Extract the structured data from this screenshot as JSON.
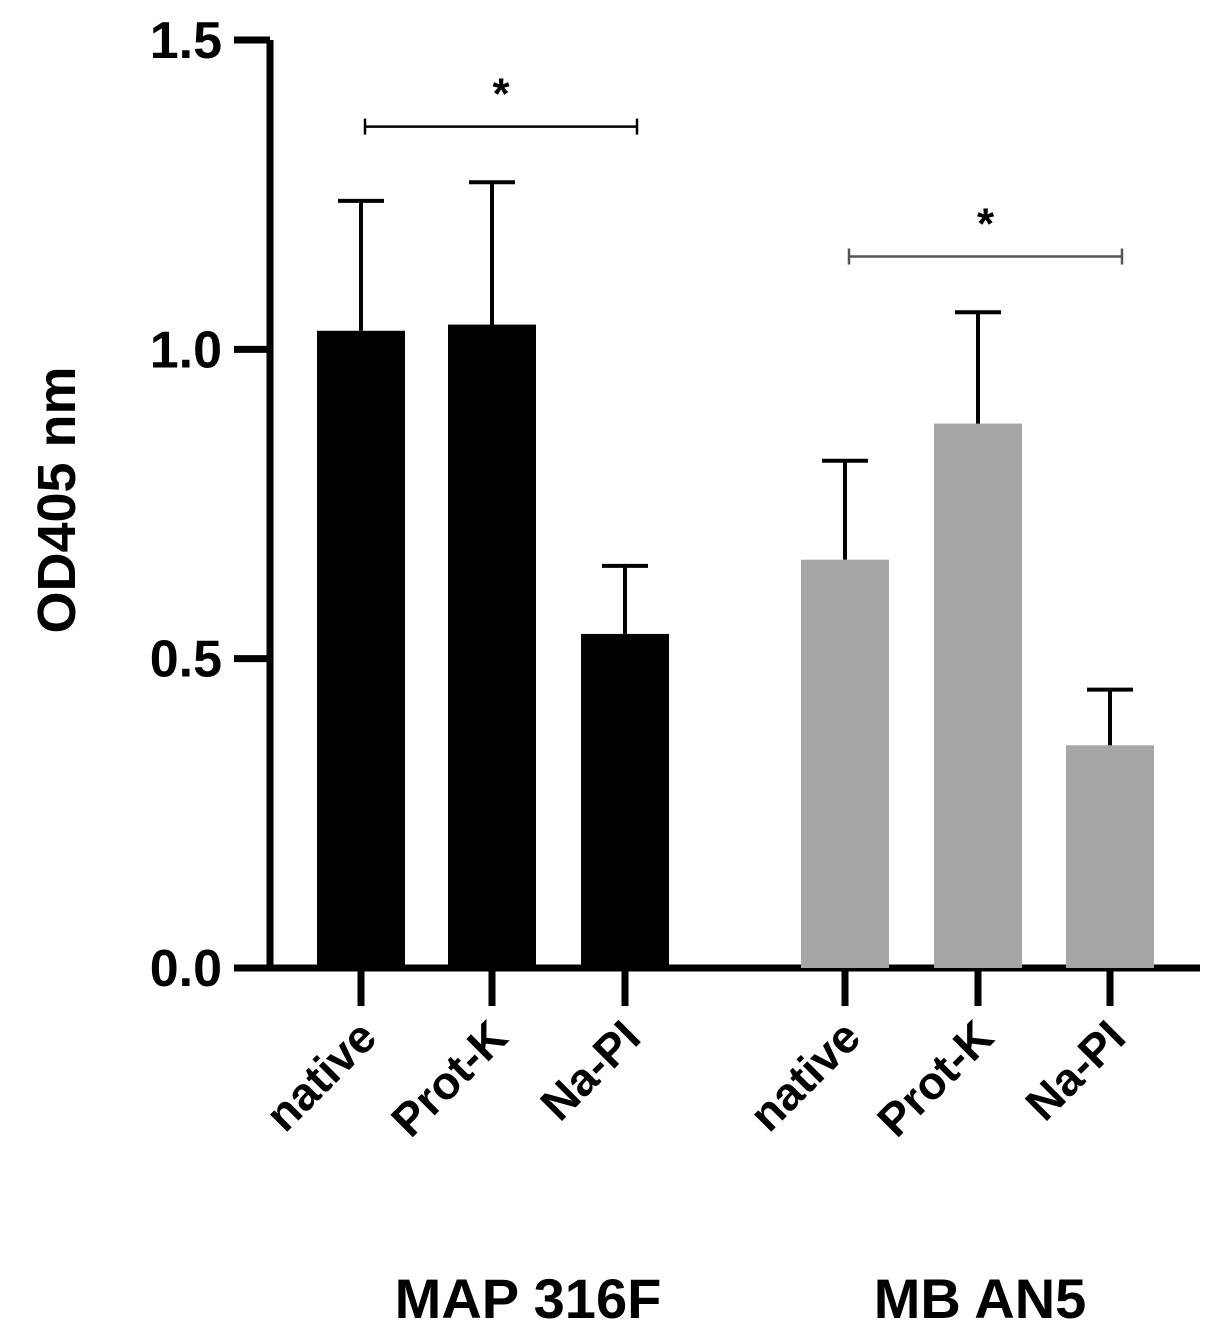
{
  "chart_data": {
    "type": "bar",
    "ylabel": "OD405 nm",
    "ylim": [
      0,
      1.5
    ],
    "yticks": [
      "0.0",
      "0.5",
      "1.0",
      "1.5"
    ],
    "grid": false,
    "error_bars": "upper",
    "groups": [
      {
        "name": "MAP 316F",
        "color": "#000000",
        "categories": [
          "native",
          "Prot-K",
          "Na-PI"
        ],
        "values": [
          1.03,
          1.04,
          0.54
        ],
        "errors": [
          0.21,
          0.23,
          0.11
        ]
      },
      {
        "name": "MB AN5",
        "color": "#a6a6a8",
        "categories": [
          "native",
          "Prot-K",
          "Na-PI"
        ],
        "values": [
          0.66,
          0.88,
          0.36
        ],
        "errors": [
          0.16,
          0.18,
          0.09
        ]
      }
    ],
    "annotations": [
      {
        "text": "*",
        "group": 0,
        "from": "native",
        "to": "Na-PI",
        "y": 1.36
      },
      {
        "text": "*",
        "group": 1,
        "from": "native",
        "to": "Na-PI",
        "y": 1.15
      }
    ]
  }
}
